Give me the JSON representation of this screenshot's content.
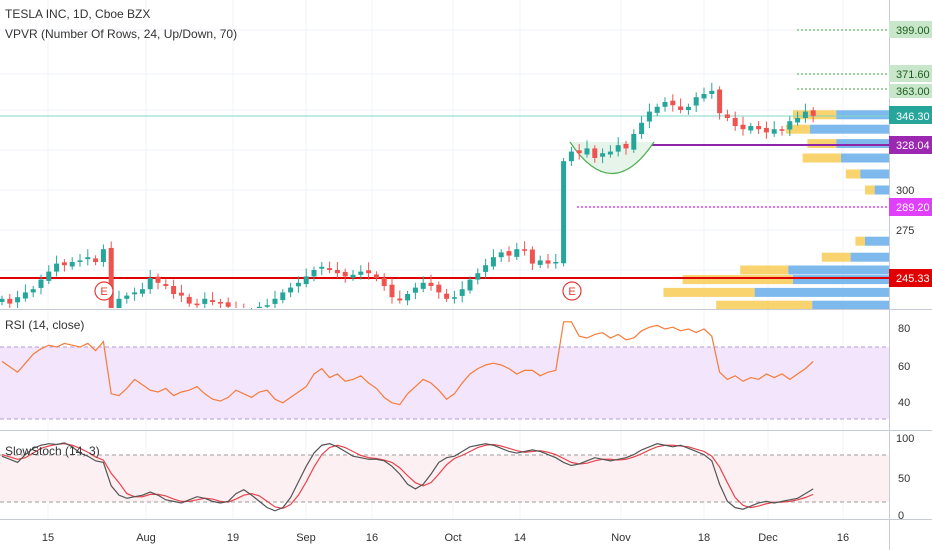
{
  "header": {
    "symbol_line": "TESLA INC, 1D, Cboe BZX",
    "indicator_line": "VPVR (Number Of Rows, 24, Up/Down, 70)"
  },
  "colors": {
    "up": "#26a69a",
    "down": "#ef5350",
    "grid": "#f0f3fa",
    "rsi_line": "#f57c3a",
    "rsi_band": "#f3e5fb",
    "stoch_k": "#555555",
    "stoch_d": "#e8434c",
    "support": "#e00000",
    "resistance": "#9c27b0",
    "target": "#e040fb",
    "vp_up": "#5ea8e8",
    "vp_down": "#f8c84a",
    "axis_text": "#333333"
  },
  "chart_data": [
    {
      "type": "candlestick",
      "panel": "price",
      "x_ticks": [
        "15",
        "Aug",
        "19",
        "Sep",
        "16",
        "Oct",
        "14",
        "Nov",
        "18",
        "Dec",
        "16"
      ],
      "y_ticks": [
        275,
        300
      ],
      "price_labels": [
        {
          "value": 399.0,
          "text": "399.00",
          "style": "target"
        },
        {
          "value": 371.6,
          "text": "371.60",
          "style": "target"
        },
        {
          "value": 363.0,
          "text": "363.00",
          "style": "target"
        },
        {
          "value": 346.3,
          "text": "346.30",
          "style": "last"
        },
        {
          "value": 328.04,
          "text": "328.04",
          "style": "resistance"
        },
        {
          "value": 289.2,
          "text": "289.20",
          "style": "stop"
        },
        {
          "value": 245.33,
          "text": "245.33",
          "style": "support"
        }
      ],
      "earnings_markers": [
        {
          "date": "Jul 24",
          "label": "E"
        },
        {
          "date": "Oct 23",
          "label": "E"
        }
      ],
      "closes": [
        232,
        229,
        233,
        236,
        238,
        244,
        249,
        254,
        253,
        255,
        256,
        258,
        255,
        263,
        226,
        232,
        234,
        236,
        238,
        245,
        242,
        240,
        235,
        234,
        229,
        228,
        232,
        230,
        229,
        227,
        224,
        222,
        223,
        227,
        228,
        232,
        236,
        239,
        242,
        246,
        250,
        252,
        250,
        248,
        246,
        247,
        249,
        248,
        245,
        240,
        233,
        231,
        235,
        239,
        242,
        240,
        236,
        232,
        233,
        238,
        244,
        248,
        253,
        258,
        261,
        259,
        263,
        262,
        254,
        256,
        254,
        255,
        318,
        324,
        323,
        326,
        320,
        323,
        324,
        328,
        326,
        335,
        342,
        349,
        352,
        355,
        353,
        350,
        352,
        358,
        360,
        362,
        348,
        345,
        340,
        338,
        340,
        338,
        336,
        338,
        337,
        343,
        345,
        349,
        346.3
      ],
      "volume_profile_rows": [
        {
          "price": 347,
          "up": 0.22,
          "down": 0.18
        },
        {
          "price": 338,
          "up": 0.33,
          "down": 0.1
        },
        {
          "price": 329,
          "up": 0.22,
          "down": 0.12
        },
        {
          "price": 320,
          "up": 0.2,
          "down": 0.16
        },
        {
          "price": 310,
          "up": 0.12,
          "down": 0.06
        },
        {
          "price": 300,
          "up": 0.06,
          "down": 0.04
        },
        {
          "price": 268,
          "up": 0.1,
          "down": 0.04
        },
        {
          "price": 258,
          "up": 0.16,
          "down": 0.12
        },
        {
          "price": 250,
          "up": 0.42,
          "down": 0.2
        },
        {
          "price": 244,
          "up": 0.4,
          "down": 0.46
        },
        {
          "price": 236,
          "up": 0.56,
          "down": 0.38
        },
        {
          "price": 228,
          "up": 0.32,
          "down": 0.4
        }
      ]
    },
    {
      "type": "line",
      "panel": "rsi",
      "title": "RSI (14, close)",
      "y_ticks": [
        40,
        60,
        80
      ],
      "band": [
        30,
        70
      ],
      "series": [
        {
          "name": "RSI",
          "values": [
            62,
            59,
            56,
            61,
            66,
            69,
            71,
            70,
            72,
            71,
            70,
            72,
            68,
            73,
            44,
            43,
            47,
            52,
            49,
            46,
            45,
            47,
            43,
            45,
            46,
            48,
            44,
            41,
            40,
            42,
            46,
            44,
            42,
            45,
            46,
            41,
            39,
            42,
            45,
            48,
            55,
            58,
            53,
            55,
            51,
            52,
            54,
            50,
            47,
            42,
            39,
            38,
            44,
            48,
            52,
            50,
            46,
            41,
            44,
            50,
            55,
            58,
            60,
            61,
            60,
            58,
            55,
            57,
            57,
            54,
            56,
            57,
            84,
            84,
            76,
            75,
            77,
            78,
            75,
            77,
            74,
            75,
            79,
            81,
            82,
            80,
            81,
            79,
            80,
            78,
            80,
            76,
            56,
            52,
            54,
            51,
            53,
            52,
            55,
            53,
            55,
            52,
            55,
            58,
            62
          ]
        }
      ]
    },
    {
      "type": "line",
      "panel": "stoch",
      "title": "SlowStoch (14, 3)",
      "y_ticks": [
        0,
        50,
        100
      ],
      "band": [
        20,
        80
      ],
      "series": [
        {
          "name": "%K",
          "values": [
            78,
            74,
            70,
            80,
            88,
            92,
            94,
            93,
            95,
            90,
            82,
            78,
            72,
            70,
            40,
            28,
            24,
            26,
            28,
            32,
            28,
            22,
            20,
            18,
            22,
            26,
            24,
            20,
            18,
            20,
            30,
            35,
            28,
            20,
            12,
            8,
            12,
            25,
            45,
            65,
            82,
            92,
            94,
            90,
            84,
            78,
            76,
            74,
            74,
            72,
            65,
            55,
            42,
            36,
            42,
            55,
            70,
            76,
            78,
            84,
            90,
            92,
            94,
            92,
            88,
            84,
            82,
            84,
            86,
            84,
            80,
            76,
            70,
            66,
            68,
            72,
            76,
            74,
            72,
            74,
            76,
            80,
            86,
            90,
            94,
            92,
            90,
            92,
            88,
            84,
            80,
            72,
            42,
            20,
            12,
            10,
            14,
            18,
            20,
            18,
            20,
            22,
            24,
            30,
            36
          ]
        },
        {
          "name": "%D",
          "values": [
            80,
            77,
            74,
            76,
            82,
            88,
            91,
            93,
            94,
            92,
            88,
            83,
            77,
            73,
            56,
            44,
            30,
            26,
            26,
            29,
            29,
            27,
            23,
            20,
            20,
            22,
            24,
            23,
            20,
            19,
            23,
            28,
            30,
            27,
            20,
            13,
            11,
            16,
            28,
            45,
            64,
            80,
            89,
            92,
            89,
            84,
            79,
            76,
            75,
            73,
            70,
            63,
            53,
            44,
            40,
            44,
            55,
            67,
            75,
            79,
            84,
            89,
            92,
            93,
            91,
            88,
            85,
            83,
            84,
            85,
            83,
            80,
            75,
            70,
            68,
            69,
            72,
            74,
            74,
            73,
            74,
            77,
            81,
            86,
            90,
            92,
            92,
            91,
            90,
            87,
            84,
            78,
            64,
            44,
            25,
            15,
            12,
            14,
            17,
            19,
            19,
            20,
            22,
            25,
            29
          ]
        }
      ]
    }
  ]
}
